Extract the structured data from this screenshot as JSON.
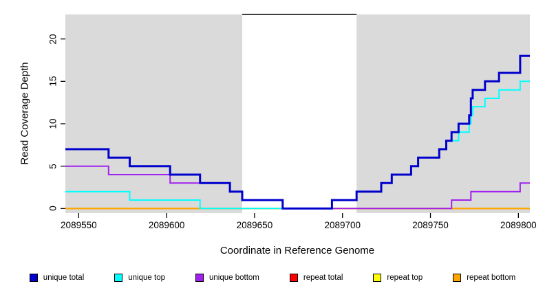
{
  "chart_data": {
    "type": "line",
    "subtype": "step",
    "title": "",
    "xlabel": "Coordinate in Reference Genome",
    "ylabel": "Read Coverage Depth",
    "x_ticks": [
      2089550,
      2089600,
      2089650,
      2089700,
      2089750,
      2089800
    ],
    "y_ticks": [
      0,
      5,
      10,
      15,
      20
    ],
    "x_range": [
      2089542,
      2089807
    ],
    "y_range": [
      0,
      23
    ],
    "grid": "off",
    "panel_bg": "#DADADA",
    "gap_region": {
      "start": 2089643,
      "end": 2089708,
      "fill": "#FFFFFF",
      "top_line_color": "#000000"
    },
    "series": [
      {
        "name": "repeat total",
        "color": "#FF0000",
        "width": 2,
        "steps": [
          [
            2089542,
            0
          ]
        ]
      },
      {
        "name": "repeat top",
        "color": "#FFFF00",
        "width": 2,
        "steps": [
          [
            2089542,
            0
          ]
        ]
      },
      {
        "name": "repeat bottom",
        "color": "#FFA500",
        "width": 2,
        "steps": [
          [
            2089542,
            0
          ]
        ]
      },
      {
        "name": "unique top",
        "color": "#00FFFF",
        "width": 2,
        "steps": [
          [
            2089542,
            2
          ],
          [
            2089579,
            1
          ],
          [
            2089619,
            0
          ],
          [
            2089694,
            1
          ],
          [
            2089708,
            2
          ],
          [
            2089722,
            3
          ],
          [
            2089728,
            4
          ],
          [
            2089739,
            5
          ],
          [
            2089743,
            6
          ],
          [
            2089755,
            7
          ],
          [
            2089759,
            8
          ],
          [
            2089766,
            9
          ],
          [
            2089772,
            10
          ],
          [
            2089773,
            11
          ],
          [
            2089774,
            12
          ],
          [
            2089781,
            13
          ],
          [
            2089789,
            14
          ],
          [
            2089801,
            15
          ]
        ]
      },
      {
        "name": "unique bottom",
        "color": "#A020F0",
        "width": 2,
        "steps": [
          [
            2089542,
            5
          ],
          [
            2089567,
            4
          ],
          [
            2089602,
            3
          ],
          [
            2089636,
            2
          ],
          [
            2089643,
            1
          ],
          [
            2089666,
            0
          ],
          [
            2089762,
            1
          ],
          [
            2089773,
            2
          ],
          [
            2089801,
            3
          ]
        ]
      },
      {
        "name": "unique total",
        "color": "#0000CC",
        "width": 3,
        "steps": [
          [
            2089542,
            7
          ],
          [
            2089567,
            6
          ],
          [
            2089579,
            5
          ],
          [
            2089602,
            4
          ],
          [
            2089619,
            3
          ],
          [
            2089636,
            2
          ],
          [
            2089643,
            1
          ],
          [
            2089666,
            0
          ],
          [
            2089694,
            1
          ],
          [
            2089708,
            2
          ],
          [
            2089722,
            3
          ],
          [
            2089728,
            4
          ],
          [
            2089739,
            5
          ],
          [
            2089743,
            6
          ],
          [
            2089755,
            7
          ],
          [
            2089759,
            8
          ],
          [
            2089762,
            9
          ],
          [
            2089766,
            10
          ],
          [
            2089772,
            11
          ],
          [
            2089773,
            13
          ],
          [
            2089774,
            14
          ],
          [
            2089781,
            15
          ],
          [
            2089789,
            16
          ],
          [
            2089801,
            18
          ]
        ]
      }
    ],
    "legend": [
      {
        "label": "unique total",
        "color": "#0000CC"
      },
      {
        "label": "unique top",
        "color": "#00FFFF"
      },
      {
        "label": "unique bottom",
        "color": "#A020F0"
      },
      {
        "label": "repeat total",
        "color": "#FF0000"
      },
      {
        "label": "repeat top",
        "color": "#FFFF00"
      },
      {
        "label": "repeat bottom",
        "color": "#FFA500"
      }
    ]
  }
}
